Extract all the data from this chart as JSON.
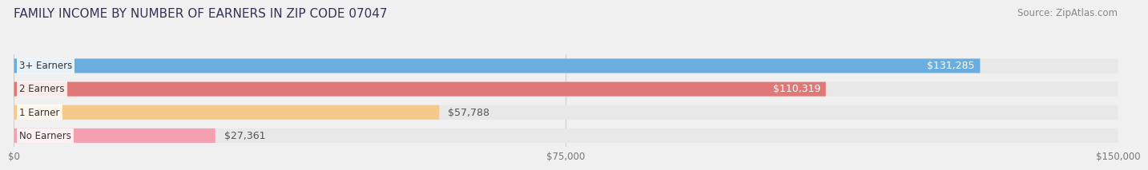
{
  "title": "FAMILY INCOME BY NUMBER OF EARNERS IN ZIP CODE 07047",
  "source": "Source: ZipAtlas.com",
  "categories": [
    "No Earners",
    "1 Earner",
    "2 Earners",
    "3+ Earners"
  ],
  "values": [
    27361,
    57788,
    110319,
    131285
  ],
  "bar_colors": [
    "#f4a0b0",
    "#f5c98a",
    "#e07878",
    "#6aaee0"
  ],
  "bar_edge_colors": [
    "#e07090",
    "#e0a050",
    "#cc5555",
    "#4488cc"
  ],
  "label_colors": [
    "#555555",
    "#555555",
    "#ffffff",
    "#ffffff"
  ],
  "xlim": [
    0,
    150000
  ],
  "xticks": [
    0,
    75000,
    150000
  ],
  "xtick_labels": [
    "$0",
    "$75,000",
    "$150,000"
  ],
  "background_color": "#f0f0f0",
  "bar_background_color": "#e8e8e8",
  "title_fontsize": 11,
  "source_fontsize": 8.5,
  "label_fontsize": 9,
  "category_fontsize": 8.5,
  "tick_fontsize": 8.5,
  "bar_height": 0.62,
  "fig_width": 14.06,
  "fig_height": 2.33
}
